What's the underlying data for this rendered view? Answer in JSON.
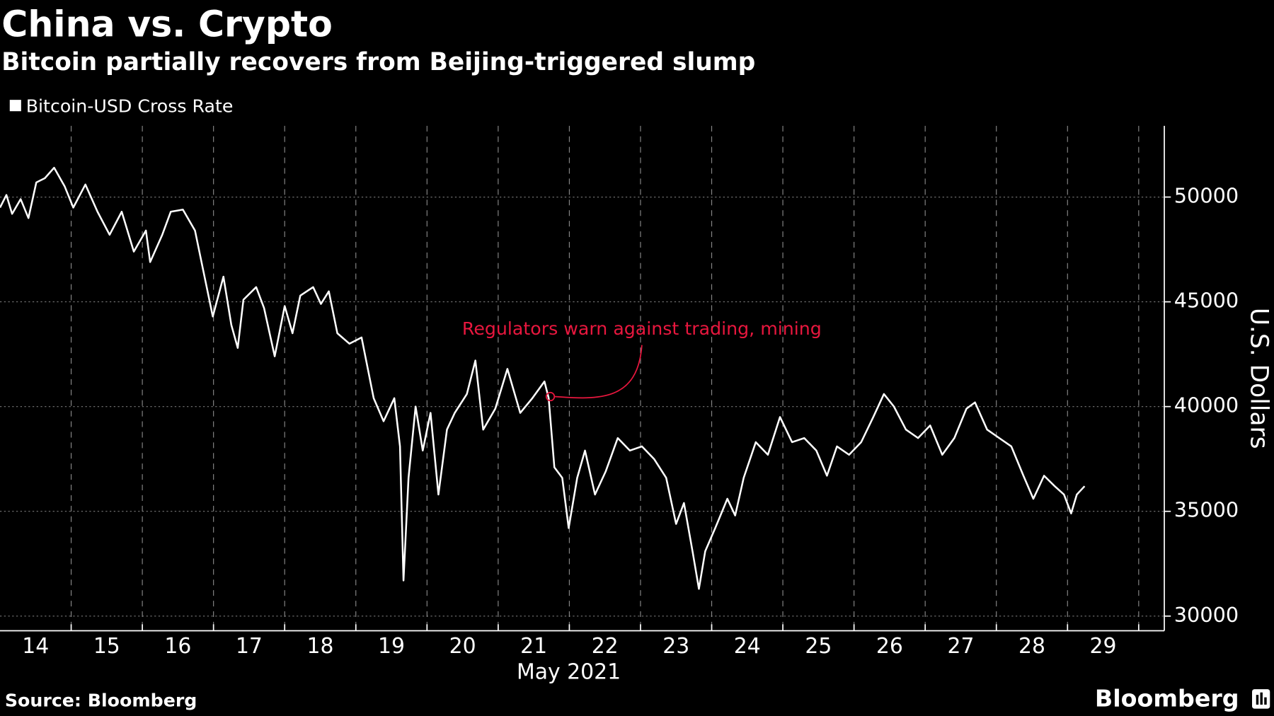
{
  "chart_data": {
    "type": "line",
    "title": "China vs. Crypto",
    "subtitle": "Bitcoin partially recovers from Beijing-triggered slump",
    "x_label": "May 2021",
    "y_label": "U.S. Dollars",
    "source": "Source: Bloomberg",
    "brand": "Bloomberg",
    "annotation": "Regulators warn against trading, mining",
    "annotation_color": "#e8173e",
    "legend_position": "top-left",
    "grid": true,
    "xlim": [
      13.5,
      29.86
    ],
    "xticks": [
      14,
      15,
      16,
      17,
      18,
      19,
      20,
      21,
      22,
      23,
      24,
      25,
      26,
      27,
      28,
      29
    ],
    "ylim": [
      29300,
      53400
    ],
    "yticks": [
      30000,
      35000,
      40000,
      45000,
      50000
    ],
    "x": [
      13.5,
      13.59,
      13.67,
      13.79,
      13.9,
      14.01,
      14.13,
      14.26,
      14.41,
      14.53,
      14.7,
      14.87,
      15.04,
      15.21,
      15.38,
      15.55,
      15.61,
      15.78,
      15.9,
      16.07,
      16.24,
      16.35,
      16.49,
      16.64,
      16.75,
      16.84,
      16.92,
      17.1,
      17.21,
      17.36,
      17.5,
      17.61,
      17.72,
      17.9,
      18.01,
      18.12,
      18.24,
      18.41,
      18.58,
      18.75,
      18.89,
      19.04,
      19.12,
      19.17,
      19.24,
      19.34,
      19.44,
      19.55,
      19.66,
      19.78,
      19.89,
      20.06,
      20.18,
      20.29,
      20.46,
      20.63,
      20.81,
      20.98,
      21.15,
      21.21,
      21.29,
      21.4,
      21.49,
      21.61,
      21.72,
      21.86,
      22.01,
      22.18,
      22.35,
      22.52,
      22.69,
      22.86,
      23.0,
      23.11,
      23.23,
      23.32,
      23.41,
      23.55,
      23.72,
      23.83,
      23.95,
      24.12,
      24.29,
      24.46,
      24.63,
      24.8,
      24.97,
      25.12,
      25.26,
      25.43,
      25.6,
      25.77,
      25.92,
      26.06,
      26.23,
      26.4,
      26.57,
      26.74,
      26.91,
      27.08,
      27.2,
      27.37,
      27.54,
      27.71,
      27.88,
      28.02,
      28.17,
      28.32,
      28.45,
      28.55,
      28.63,
      28.74
    ],
    "series": [
      {
        "name": "Bitcoin-USD Cross Rate",
        "color": "#ffffff",
        "values": [
          49500,
          50100,
          49200,
          49900,
          49000,
          50700,
          50900,
          51400,
          50500,
          49500,
          50600,
          49300,
          48200,
          49300,
          47400,
          48400,
          46900,
          48200,
          49300,
          49400,
          48400,
          46600,
          44300,
          46200,
          43900,
          42800,
          45100,
          45700,
          44700,
          42400,
          44800,
          43500,
          45300,
          45700,
          44900,
          45500,
          43500,
          43000,
          43300,
          40400,
          39300,
          40400,
          38100,
          31700,
          36600,
          40000,
          37900,
          39700,
          35800,
          38900,
          39700,
          40600,
          42200,
          38900,
          39900,
          41800,
          39700,
          40400,
          41200,
          40400,
          37100,
          36600,
          34200,
          36600,
          37900,
          35800,
          36900,
          38500,
          37900,
          38100,
          37500,
          36600,
          34400,
          35400,
          33100,
          31300,
          33100,
          34200,
          35600,
          34800,
          36600,
          38300,
          37700,
          39500,
          38300,
          38500,
          37900,
          36700,
          38100,
          37700,
          38300,
          39500,
          40600,
          40000,
          38900,
          38500,
          39100,
          37700,
          38500,
          39900,
          40200,
          38900,
          38500,
          38100,
          36700,
          35600,
          36700,
          36200,
          35800,
          34900,
          35800,
          36200
        ]
      }
    ]
  }
}
